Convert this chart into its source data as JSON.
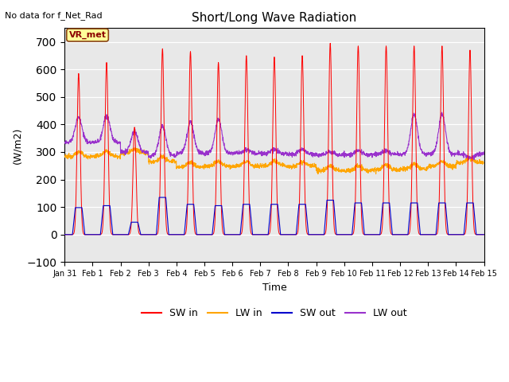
{
  "title": "Short/Long Wave Radiation",
  "xlabel": "Time",
  "ylabel": "(W/m2)",
  "top_left_text": "No data for f_Net_Rad",
  "legend_label_text": "VR_met",
  "ylim": [
    -100,
    750
  ],
  "yticks": [
    -100,
    0,
    100,
    200,
    300,
    400,
    500,
    600,
    700
  ],
  "date_labels": [
    "Jan 31",
    "Feb 1",
    "Feb 2",
    "Feb 3",
    "Feb 4",
    "Feb 5",
    "Feb 6",
    "Feb 7",
    "Feb 8",
    "Feb 9",
    "Feb 10",
    "Feb 11",
    "Feb 12",
    "Feb 13",
    "Feb 14",
    "Feb 15"
  ],
  "line_colors": {
    "SW_in": "#ff0000",
    "LW_in": "#ffa500",
    "SW_out": "#0000cd",
    "LW_out": "#9932cc"
  },
  "line_labels": [
    "SW in",
    "LW in",
    "SW out",
    "LW out"
  ],
  "background_color": "#ffffff",
  "plot_bg_color": "#e8e8e8",
  "n_days": 15,
  "points_per_day": 144,
  "sw_in_peaks": [
    585,
    625,
    390,
    675,
    665,
    625,
    650,
    645,
    650,
    695,
    685,
    685,
    685,
    685,
    670
  ],
  "sw_out_peaks": [
    98,
    105,
    45,
    135,
    110,
    105,
    110,
    110,
    110,
    125,
    115,
    115,
    115,
    115,
    115
  ],
  "lw_in_base": [
    283,
    285,
    295,
    265,
    245,
    248,
    248,
    250,
    248,
    232,
    232,
    235,
    238,
    248,
    262
  ],
  "lw_in_daytime_bump": [
    18,
    18,
    15,
    18,
    18,
    18,
    18,
    18,
    18,
    18,
    18,
    18,
    18,
    18,
    18
  ],
  "lw_out_night": [
    335,
    335,
    300,
    285,
    295,
    295,
    295,
    293,
    292,
    290,
    290,
    292,
    292,
    292,
    292
  ],
  "lw_out_day_peak": [
    425,
    430,
    375,
    395,
    410,
    420,
    310,
    310,
    310,
    300,
    305,
    305,
    435,
    440,
    280
  ]
}
